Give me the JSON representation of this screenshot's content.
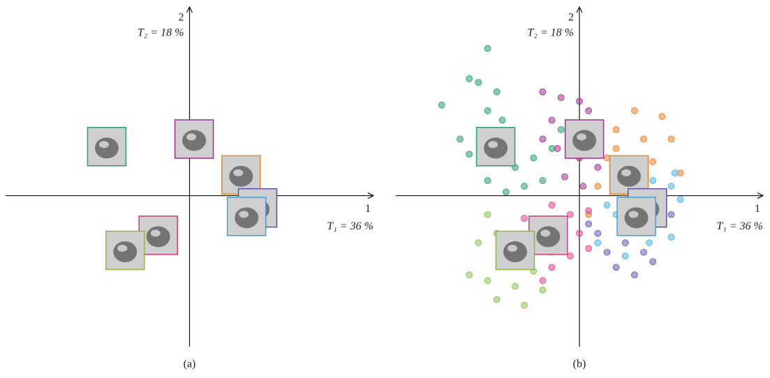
{
  "chart_data": [
    {
      "type": "scatter",
      "x_label": "1",
      "y_label": "2",
      "x_caption": "T₁ = 36 %",
      "y_caption": "T₂ = 18 %",
      "caption": "(a)",
      "xlim": [
        -1,
        1
      ],
      "ylim": [
        -0.8,
        1
      ],
      "thumbnails": {
        "x": [
          -0.45,
          0.025,
          0.28,
          0.37,
          0.31,
          -0.17,
          -0.35
        ],
        "y": [
          0.26,
          0.3,
          0.11,
          -0.065,
          -0.11,
          -0.21,
          -0.29
        ],
        "colors": [
          "#2e9e6e",
          "#a0308f",
          "#e8822a",
          "#5a4f9e",
          "#4a9fd6",
          "#d8377a",
          "#8ab84a"
        ]
      }
    },
    {
      "type": "scatter",
      "x_label": "1",
      "y_label": "2",
      "x_caption": "T₁ = 36 %",
      "y_caption": "T₂ = 18 %",
      "caption": "(b)",
      "xlim": [
        -1,
        1
      ],
      "ylim": [
        -0.8,
        1
      ],
      "thumbnails": {
        "x": [
          -0.456,
          0.027,
          0.27,
          0.37,
          0.31,
          -0.17,
          -0.35
        ],
        "y": [
          0.26,
          0.3,
          0.11,
          -0.065,
          -0.11,
          -0.21,
          -0.29
        ],
        "colors": [
          "#2e9e6e",
          "#a0308f",
          "#e8822a",
          "#5a4f9e",
          "#4a9fd6",
          "#d8377a",
          "#8ab84a"
        ]
      },
      "series": [
        {
          "color": "#2e9e6e",
          "x": [
            -0.75,
            -0.6,
            -0.55,
            -0.5,
            -0.42,
            -0.6,
            -0.35,
            -0.25,
            -0.15,
            -0.5,
            -0.4,
            -0.3,
            -0.2,
            -0.65,
            -0.45,
            -0.1,
            -0.5
          ],
          "y": [
            0.48,
            0.62,
            0.6,
            0.45,
            0.4,
            0.22,
            0.15,
            0.2,
            0.25,
            0.08,
            0.02,
            0.05,
            0.08,
            0.3,
            0.55,
            0.35,
            0.78
          ]
        },
        {
          "color": "#a0308f",
          "x": [
            -0.2,
            -0.1,
            0.0,
            0.05,
            -0.15,
            -0.05,
            0.08,
            -0.12,
            0.0,
            -0.08,
            0.1,
            0.02,
            -0.2
          ],
          "y": [
            0.55,
            0.52,
            0.5,
            0.45,
            0.4,
            0.35,
            0.3,
            0.25,
            0.2,
            0.1,
            0.15,
            0.05,
            0.3
          ]
        },
        {
          "color": "#e8822a",
          "x": [
            0.3,
            0.45,
            0.2,
            0.35,
            0.5,
            0.15,
            0.4,
            0.55,
            0.1,
            0.25,
            0.45,
            0.05,
            0.2
          ],
          "y": [
            0.45,
            0.42,
            0.35,
            0.3,
            0.3,
            0.2,
            0.18,
            0.12,
            0.05,
            0.0,
            -0.05,
            -0.1,
            0.25
          ]
        },
        {
          "color": "#6a5aa8",
          "x": [
            0.3,
            0.45,
            0.1,
            0.25,
            0.35,
            0.2,
            0.3,
            0.15,
            0.5,
            0.4,
            0.05,
            0.28
          ],
          "y": [
            -0.05,
            -0.15,
            -0.2,
            -0.25,
            -0.3,
            -0.38,
            -0.42,
            -0.3,
            -0.1,
            -0.35,
            -0.15,
            -0.15
          ]
        },
        {
          "color": "#4db5e0",
          "x": [
            0.4,
            0.5,
            0.55,
            0.45,
            0.38,
            0.5,
            0.3,
            0.2,
            0.1,
            0.25,
            0.52,
            0.15
          ],
          "y": [
            0.08,
            0.05,
            -0.02,
            -0.12,
            -0.25,
            -0.22,
            -0.18,
            -0.1,
            -0.25,
            -0.32,
            0.12,
            -0.05
          ]
        },
        {
          "color": "#e0468c",
          "x": [
            -0.15,
            -0.05,
            0.0,
            -0.2,
            -0.1,
            -0.25,
            -0.05,
            0.05,
            -0.15,
            -0.3,
            0.05,
            -0.2
          ],
          "y": [
            -0.05,
            -0.1,
            -0.2,
            -0.15,
            -0.25,
            -0.3,
            -0.32,
            -0.28,
            -0.38,
            -0.12,
            -0.08,
            -0.45
          ]
        },
        {
          "color": "#8cc255",
          "x": [
            -0.5,
            -0.45,
            -0.55,
            -0.4,
            -0.5,
            -0.35,
            -0.25,
            -0.2,
            -0.45,
            -0.3,
            -0.6,
            -0.15
          ],
          "y": [
            -0.1,
            -0.2,
            -0.25,
            -0.35,
            -0.45,
            -0.48,
            -0.4,
            -0.5,
            -0.55,
            -0.58,
            -0.42,
            -0.3
          ]
        }
      ]
    }
  ]
}
